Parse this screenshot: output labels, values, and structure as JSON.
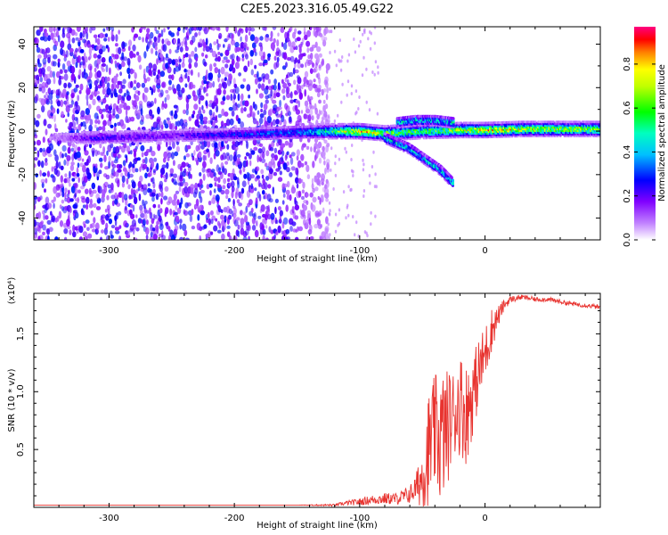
{
  "title": "C2E5.2023.316.05.49.G22",
  "chart_data": [
    {
      "type": "heatmap",
      "xlabel": "Height of straight line (km)",
      "ylabel": "Frequency (Hz)",
      "xlim": [
        -360,
        92
      ],
      "ylim": [
        -50,
        48
      ],
      "x_ticks": [
        -300,
        -200,
        -100,
        0
      ],
      "y_ticks": [
        -40,
        -20,
        0,
        20,
        40
      ],
      "colorbar": {
        "label": "Normalized spectral amplitude",
        "range": [
          0,
          0.97
        ],
        "ticks": [
          0.0,
          0.2,
          0.4,
          0.6,
          0.8
        ],
        "colors": [
          "#ffffff",
          "#8000ff",
          "#0000ff",
          "#00ffff",
          "#00ff00",
          "#ffff00",
          "#ff8000",
          "#ff0000",
          "#ff0080"
        ]
      },
      "ridge": [
        {
          "x": -360,
          "f": -3,
          "a": 0.0
        },
        {
          "x": -310,
          "f": -3,
          "a": 0.25
        },
        {
          "x": -250,
          "f": -2,
          "a": 0.2
        },
        {
          "x": -200,
          "f": -1.5,
          "a": 0.3
        },
        {
          "x": -150,
          "f": -0.5,
          "a": 0.35
        },
        {
          "x": -120,
          "f": 0,
          "a": 0.6
        },
        {
          "x": -100,
          "f": 0,
          "a": 0.85
        },
        {
          "x": -80,
          "f": -1,
          "a": 0.7
        },
        {
          "x": -50,
          "f": 0,
          "a": 0.6
        },
        {
          "x": -20,
          "f": 0.5,
          "a": 0.7
        },
        {
          "x": 0,
          "f": 0.5,
          "a": 0.8
        },
        {
          "x": 30,
          "f": 1,
          "a": 0.75
        },
        {
          "x": 60,
          "f": 1,
          "a": 0.7
        },
        {
          "x": 92,
          "f": 1,
          "a": 0.7
        }
      ],
      "secondary_branch": [
        {
          "x": -80,
          "f": -3
        },
        {
          "x": -60,
          "f": -8
        },
        {
          "x": -45,
          "f": -14
        },
        {
          "x": -35,
          "f": -18
        },
        {
          "x": -25,
          "f": -24
        }
      ],
      "upper_branch": [
        {
          "x": -70,
          "f": 4
        },
        {
          "x": -55,
          "f": 5
        },
        {
          "x": -40,
          "f": 5
        },
        {
          "x": -25,
          "f": 4
        }
      ]
    },
    {
      "type": "line",
      "xlabel": "Height of straight line (km)",
      "ylabel": "SNR (10 * v/v)",
      "y_multiplier": "(x10⁴)",
      "xlim": [
        -360,
        92
      ],
      "ylim": [
        0,
        1.85
      ],
      "x_ticks": [
        -300,
        -200,
        -100,
        0
      ],
      "y_ticks": [
        0.5,
        1.0,
        1.5
      ],
      "color": "#e8332f",
      "series": [
        {
          "x": [
            -360,
            -300,
            -250,
            -200,
            -150,
            -120,
            -110,
            -100,
            -90,
            -80,
            -70,
            -60,
            -55,
            -50,
            -45,
            -40,
            -35,
            -30,
            -25,
            -20,
            -15,
            -10,
            -5,
            0,
            5,
            10,
            15,
            20,
            30,
            40,
            50,
            60,
            70,
            80,
            92
          ],
          "values": [
            0.02,
            0.02,
            0.02,
            0.02,
            0.02,
            0.02,
            0.04,
            0.05,
            0.07,
            0.08,
            0.08,
            0.12,
            0.18,
            0.3,
            0.55,
            0.7,
            0.65,
            0.75,
            0.85,
            0.95,
            0.85,
            1.0,
            1.2,
            1.35,
            1.55,
            1.65,
            1.75,
            1.8,
            1.82,
            1.8,
            1.8,
            1.78,
            1.76,
            1.75,
            1.73
          ],
          "noise": [
            0,
            0,
            0,
            0,
            0,
            0.01,
            0.02,
            0.03,
            0.04,
            0.05,
            0.05,
            0.08,
            0.12,
            0.3,
            0.5,
            0.5,
            0.6,
            0.5,
            0.4,
            0.45,
            0.45,
            0.35,
            0.3,
            0.25,
            0.2,
            0.1,
            0.05,
            0.03,
            0.02,
            0.02,
            0.02,
            0.02,
            0.02,
            0.02,
            0.02
          ]
        }
      ]
    }
  ]
}
